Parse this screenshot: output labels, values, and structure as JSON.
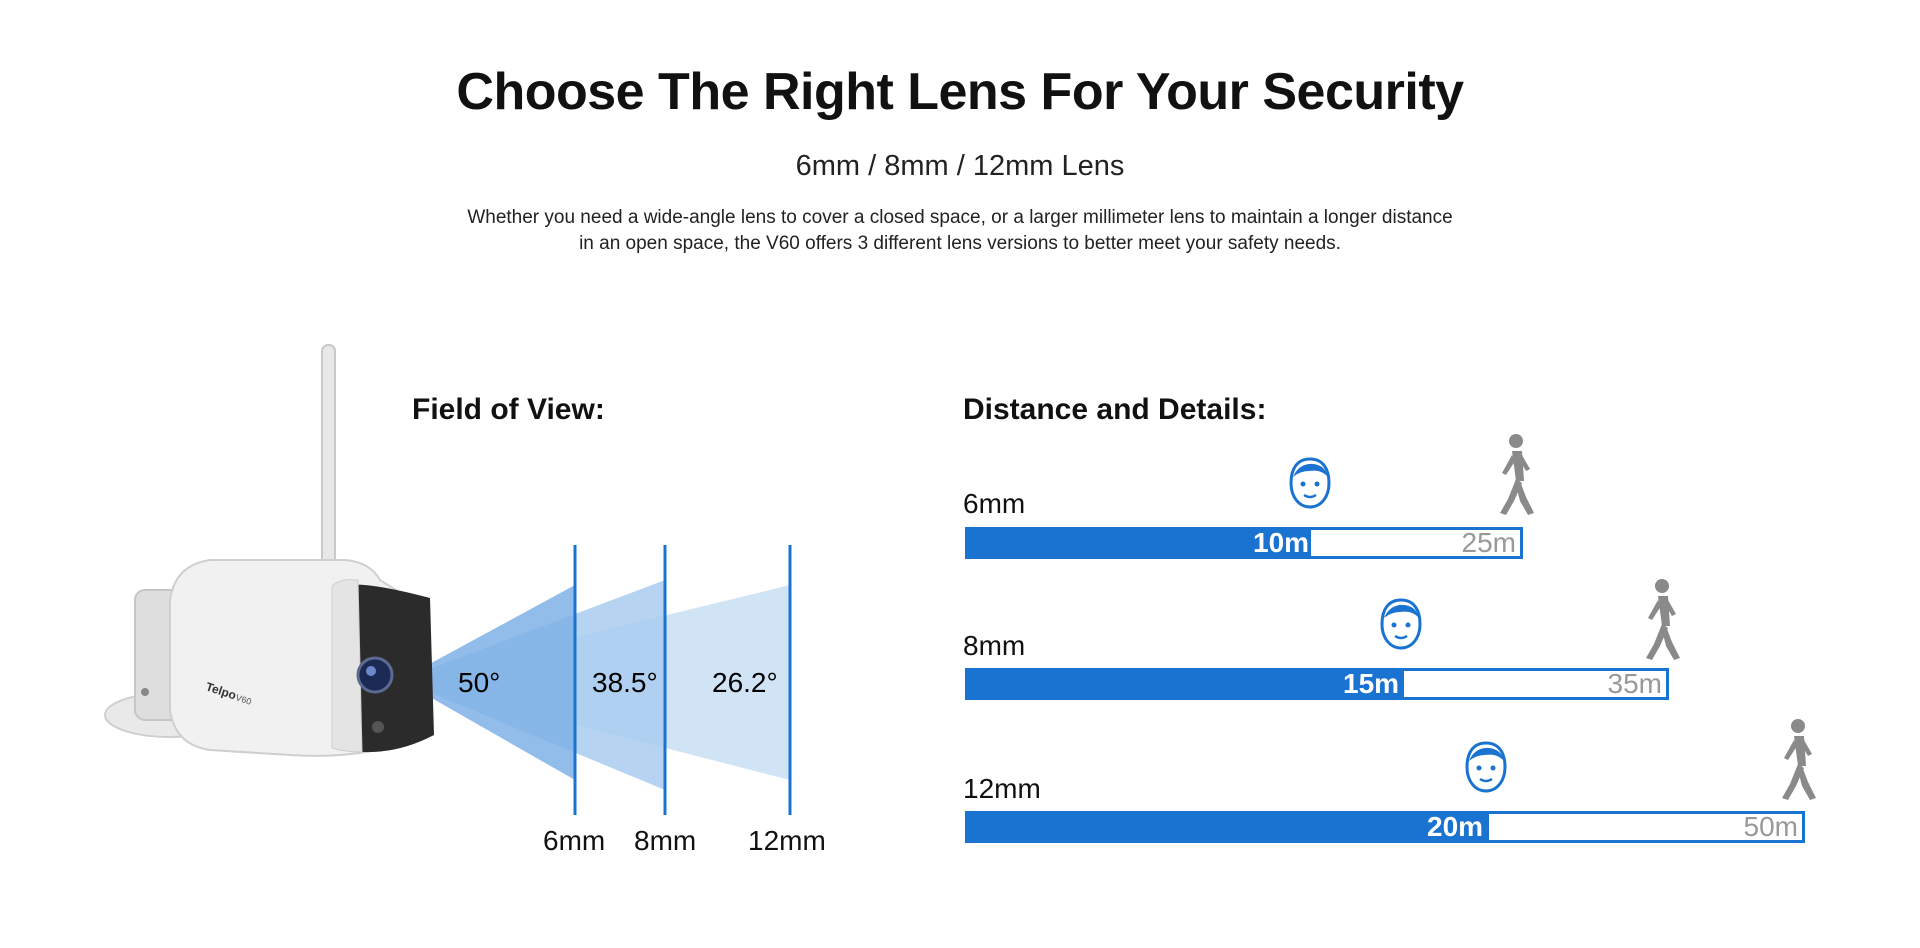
{
  "header": {
    "title": "Choose The Right Lens For Your Security",
    "subtitle": "6mm / 8mm / 12mm Lens",
    "description_line1": "Whether you need a wide-angle lens to cover a closed space, or a larger millimeter lens to maintain a longer distance",
    "description_line2": "in an open space, the V60 offers 3 different lens versions to better meet your safety needs."
  },
  "camera": {
    "brand": "Telpo",
    "model": "V60"
  },
  "field_of_view": {
    "title": "Field of View:",
    "angles": [
      "50°",
      "38.5°",
      "26.2°"
    ],
    "lenses": [
      "6mm",
      "8mm",
      "12mm"
    ]
  },
  "distance": {
    "title": "Distance and Details:",
    "rows": [
      {
        "lens": "6mm",
        "near": "10m",
        "far": "25m",
        "near_value": 10,
        "far_value": 25
      },
      {
        "lens": "8mm",
        "near": "15m",
        "far": "35m",
        "near_value": 15,
        "far_value": 35
      },
      {
        "lens": "12mm",
        "near": "20m",
        "far": "50m",
        "near_value": 20,
        "far_value": 50
      }
    ],
    "bar_color": "#1a73d0",
    "icons": [
      "face-icon",
      "walking-person-icon"
    ]
  }
}
